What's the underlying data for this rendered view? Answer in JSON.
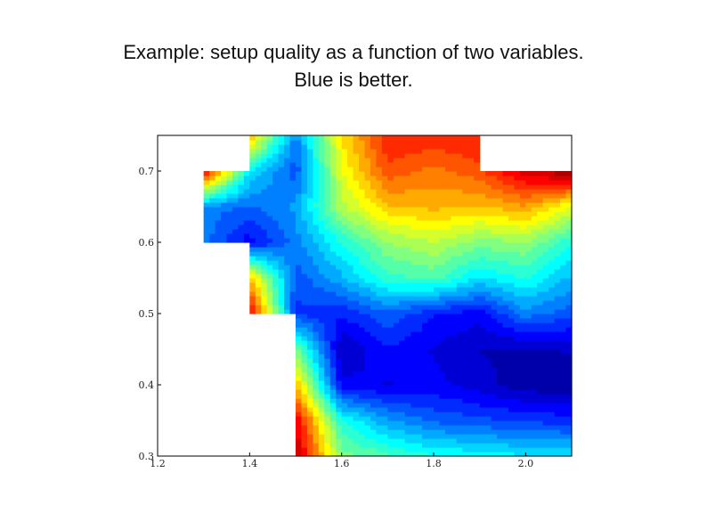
{
  "slide": {
    "title_line1": "Example: setup quality as a function of two variables.",
    "title_line2": "Blue is better."
  },
  "chart_data": {
    "type": "heatmap",
    "title": "",
    "xlabel": "",
    "ylabel": "",
    "xlim": [
      1.2,
      2.1
    ],
    "ylim": [
      0.3,
      0.75
    ],
    "grid": false,
    "colormap": "jet",
    "x_ticks": [
      1.2,
      1.4,
      1.6,
      1.8,
      2.0
    ],
    "y_ticks": [
      0.3,
      0.4,
      0.5,
      0.6,
      0.7
    ],
    "x_tick_labels": [
      "1.2",
      "1.4",
      "1.6",
      "1.8",
      "2.0"
    ],
    "y_tick_labels": [
      "0.3",
      "0.4",
      "0.5",
      "0.6",
      "0.7"
    ],
    "x": [
      1.3,
      1.4,
      1.5,
      1.6,
      1.7,
      1.8,
      1.9,
      2.0,
      2.1
    ],
    "y": [
      0.3,
      0.35,
      0.4,
      0.45,
      0.5,
      0.55,
      0.6,
      0.65,
      0.7,
      0.75
    ],
    "z": [
      [
        null,
        null,
        0.95,
        0.5,
        0.45,
        0.4,
        0.38,
        0.36,
        0.35
      ],
      [
        null,
        null,
        0.9,
        0.4,
        0.28,
        0.22,
        0.2,
        0.18,
        0.17
      ],
      [
        null,
        null,
        0.7,
        0.12,
        0.1,
        0.12,
        0.08,
        0.04,
        0.02
      ],
      [
        null,
        null,
        0.5,
        0.06,
        0.14,
        0.1,
        0.06,
        0.05,
        0.07
      ],
      [
        null,
        0.9,
        0.18,
        0.15,
        0.22,
        0.15,
        0.12,
        0.25,
        0.2
      ],
      [
        null,
        0.7,
        0.2,
        0.3,
        0.42,
        0.45,
        0.35,
        0.4,
        0.3
      ],
      [
        0.25,
        0.12,
        0.25,
        0.4,
        0.52,
        0.56,
        0.5,
        0.52,
        0.4
      ],
      [
        0.25,
        0.22,
        0.28,
        0.55,
        0.68,
        0.7,
        0.68,
        0.72,
        0.6
      ],
      [
        0.9,
        0.35,
        0.2,
        0.6,
        0.8,
        0.75,
        0.8,
        0.92,
        0.98
      ],
      [
        null,
        0.7,
        0.25,
        0.65,
        0.85,
        0.85,
        0.85,
        null,
        null
      ]
    ]
  }
}
